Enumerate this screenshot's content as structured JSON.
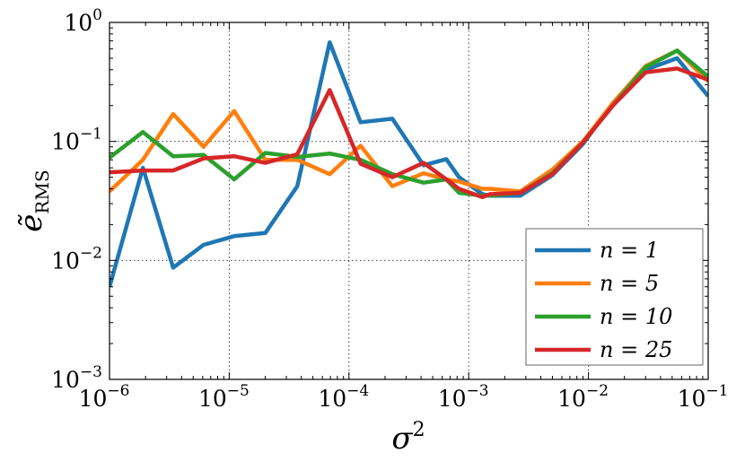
{
  "chart_data": {
    "type": "line",
    "xlabel": "σ",
    "xlabel_sup": "2",
    "ylabel": "ẽ",
    "ylabel_sub": "RMS",
    "xscale": "log",
    "yscale": "log",
    "xlim": [
      1e-06,
      0.1
    ],
    "ylim": [
      0.001,
      1
    ],
    "grid": true,
    "legend_position": "bottom-right",
    "x_ticks": [
      {
        "base": "10",
        "exp": "−6"
      },
      {
        "base": "10",
        "exp": "−5"
      },
      {
        "base": "10",
        "exp": "−4"
      },
      {
        "base": "10",
        "exp": "−3"
      },
      {
        "base": "10",
        "exp": "−2"
      },
      {
        "base": "10",
        "exp": "−1"
      }
    ],
    "y_ticks": [
      {
        "base": "10",
        "exp": "0"
      },
      {
        "base": "10",
        "exp": "−1"
      },
      {
        "base": "10",
        "exp": "−2"
      },
      {
        "base": "10",
        "exp": "−3"
      }
    ],
    "x": [
      1e-06,
      1.9e-06,
      3.4e-06,
      6.1e-06,
      1.1e-05,
      2e-05,
      3.7e-05,
      6.9e-05,
      0.000125,
      0.00023,
      0.00042,
      0.00065,
      0.00083,
      0.0013,
      0.0015,
      0.0027,
      0.005,
      0.009,
      0.016,
      0.03,
      0.055,
      0.1
    ],
    "series": [
      {
        "name": "n = 1",
        "color": "#1f77b4",
        "values": [
          0.006,
          0.06,
          0.0087,
          0.0135,
          0.016,
          0.017,
          0.042,
          0.68,
          0.145,
          0.155,
          0.063,
          0.071,
          0.05,
          0.036,
          0.035,
          0.035,
          0.052,
          0.095,
          0.21,
          0.4,
          0.5,
          0.24
        ]
      },
      {
        "name": "n = 5",
        "color": "#ff7f0e",
        "values": [
          0.038,
          0.07,
          0.17,
          0.09,
          0.18,
          0.07,
          0.07,
          0.053,
          0.092,
          0.042,
          0.054,
          0.048,
          0.046,
          0.04,
          0.04,
          0.038,
          0.058,
          0.1,
          0.21,
          0.43,
          0.58,
          0.32
        ]
      },
      {
        "name": "n = 10",
        "color": "#2ca02c",
        "values": [
          0.073,
          0.12,
          0.075,
          0.077,
          0.048,
          0.08,
          0.074,
          0.079,
          0.07,
          0.053,
          0.045,
          0.048,
          0.037,
          0.035,
          0.035,
          0.037,
          0.054,
          0.098,
          0.2,
          0.42,
          0.58,
          0.35
        ]
      },
      {
        "name": "n = 25",
        "color": "#d62728",
        "values": [
          0.055,
          0.057,
          0.057,
          0.072,
          0.075,
          0.066,
          0.078,
          0.27,
          0.065,
          0.05,
          0.066,
          0.048,
          0.04,
          0.034,
          0.036,
          0.037,
          0.053,
          0.098,
          0.2,
          0.38,
          0.41,
          0.33
        ]
      }
    ]
  }
}
